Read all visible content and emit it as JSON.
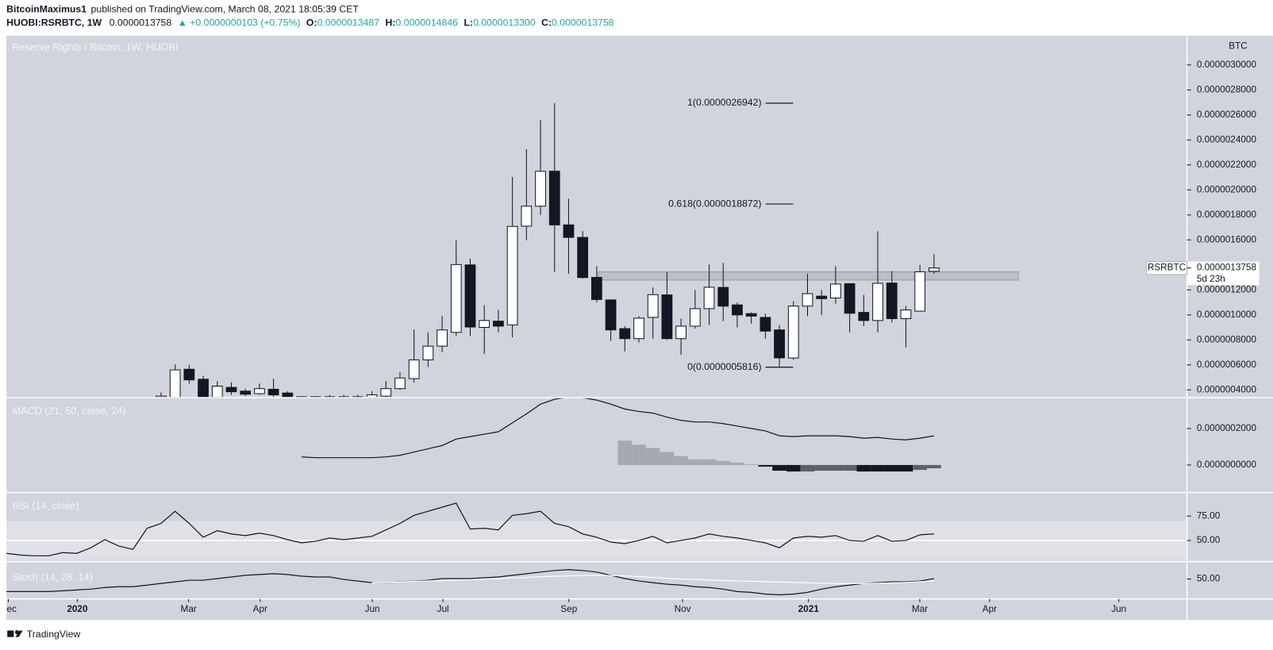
{
  "header": {
    "author": "BitcoinMaximus1",
    "published": "published on TradingView.com, March 08, 2021 18:05:39 CET",
    "symbol": "HUOBI:RSRBTC, 1W",
    "price": "0.0000013758",
    "change": "▲ +0.0000000103 (+0.75%)",
    "ohlc": [
      {
        "label": "O:",
        "value": "0.0000013487"
      },
      {
        "label": "H:",
        "value": "0.0000014846"
      },
      {
        "label": "L:",
        "value": "0.0000013300"
      },
      {
        "label": "C:",
        "value": "0.0000013758"
      }
    ]
  },
  "footer": {
    "brand": "TradingView"
  },
  "chart_data": [
    {
      "type": "candlestick",
      "title": "Reserve Rights / Bitcoin, 1W, HUOBI",
      "unit": "BTC",
      "xlim": [
        0,
        84
      ],
      "ylim": [
        3.38e-07,
        3.234e-06
      ],
      "yticks": [
        {
          "value": 3e-06,
          "label": "0.0000030000"
        },
        {
          "value": 2.8e-06,
          "label": "0.0000028000"
        },
        {
          "value": 2.6e-06,
          "label": "0.0000026000"
        },
        {
          "value": 2.4e-06,
          "label": "0.0000024000"
        },
        {
          "value": 2.2e-06,
          "label": "0.0000022000"
        },
        {
          "value": 2e-06,
          "label": "0.0000020000"
        },
        {
          "value": 1.8e-06,
          "label": "0.0000018000"
        },
        {
          "value": 1.6e-06,
          "label": "0.0000016000"
        },
        {
          "value": 1.2e-06,
          "label": "0.0000012000"
        },
        {
          "value": 1e-06,
          "label": "0.0000010000"
        },
        {
          "value": 8e-07,
          "label": "0.0000008000"
        },
        {
          "value": 6e-07,
          "label": "0.0000006000"
        },
        {
          "value": 4e-07,
          "label": "0.0000004000"
        }
      ],
      "up_color": "#ffffff",
      "down_color": "#131722",
      "open": [
        null,
        null,
        null,
        null,
        null,
        null,
        null,
        null,
        null,
        null,
        null,
        3.4e-07,
        3.4e-07,
        5.65e-07,
        4.85e-07,
        3.4e-07,
        4.2e-07,
        3.9e-07,
        3.7e-07,
        4.05e-07,
        3.75e-07,
        3.45e-07,
        3.4e-07,
        3.4e-07,
        3.45e-07,
        3.4e-07,
        3.4e-07,
        3.5e-07,
        4.1e-07,
        4.9e-07,
        6.4e-07,
        7.5e-07,
        8.6e-07,
        1.4e-06,
        9e-07,
        9.5e-07,
        9.2e-07,
        1.71e-06,
        1.87e-06,
        2.15e-06,
        1.72e-06,
        1.62e-06,
        1.3e-06,
        1.12e-06,
        8.9e-07,
        8.1e-07,
        9.8e-07,
        1.16e-06,
        8.1e-07,
        9.1e-07,
        1.05e-06,
        1.22e-06,
        1.08e-06,
        1.01e-06,
        9.8e-07,
        8.8e-07,
        6.55e-07,
        1.07e-06,
        1.15e-06,
        1.135e-06,
        1.25e-06,
        1.02e-06,
        9.55e-07,
        1.255e-06,
        9.7e-07,
        1.03e-06,
        1.3487e-06
      ],
      "high": [
        null,
        null,
        null,
        null,
        null,
        null,
        null,
        null,
        null,
        null,
        null,
        3.8e-07,
        6.04e-07,
        6e-07,
        5.13e-07,
        4.7e-07,
        4.6e-07,
        4.1e-07,
        4.5e-07,
        4.9e-07,
        3.9e-07,
        3.5e-07,
        3.5e-07,
        3.6e-07,
        3.6e-07,
        3.6e-07,
        3.9e-07,
        4.7e-07,
        5.4e-07,
        8.83e-07,
        8.6e-07,
        9.94e-07,
        1.597e-06,
        1.45e-06,
        1.078e-06,
        1.04e-06,
        2.104e-06,
        2.325e-06,
        2.56e-06,
        2.6942e-06,
        1.929e-06,
        1.67e-06,
        1.39e-06,
        1.12e-06,
        9.1e-07,
        9.9e-07,
        1.22e-06,
        1.344e-06,
        9.7e-07,
        1.201e-06,
        1.403e-06,
        1.416e-06,
        1.1e-06,
        1.02e-06,
        1.01e-06,
        9.2e-07,
        1.11e-06,
        1.33e-06,
        1.2e-06,
        1.39e-06,
        1.25e-06,
        1.16e-06,
        1.669e-06,
        1.35e-06,
        1.07e-06,
        1.4e-06,
        1.4846e-06
      ],
      "low": [
        null,
        null,
        null,
        null,
        null,
        null,
        null,
        null,
        null,
        null,
        null,
        3.2e-07,
        3.2e-07,
        4.5e-07,
        3.2e-07,
        3.2e-07,
        3.6e-07,
        3.5e-07,
        3.6e-07,
        3.4e-07,
        3.3e-07,
        3.3e-07,
        3.3e-07,
        3.3e-07,
        3.3e-07,
        3.3e-07,
        3.3e-07,
        3.4e-07,
        4e-07,
        4.6e-07,
        5.84e-07,
        7e-07,
        8.3e-07,
        8.3e-07,
        6.88e-07,
        8.6e-07,
        8.2e-07,
        1.597e-06,
        1.8e-06,
        1.344e-06,
        1.33e-06,
        1.29e-06,
        1.1e-06,
        7.92e-07,
        7.08e-07,
        7.8e-07,
        8.1e-07,
        8e-07,
        6.8e-07,
        8.9e-07,
        9.2e-07,
        9.5e-07,
        9e-07,
        9.3e-07,
        8.1e-07,
        5.816e-07,
        6.4e-07,
        9.9e-07,
        1e-06,
        1.09e-06,
        8.6e-07,
        9.1e-07,
        8.6e-07,
        9.4e-07,
        7.4e-07,
        1.03e-06,
        1.33e-06
      ],
      "close": [
        null,
        null,
        null,
        null,
        null,
        null,
        null,
        null,
        null,
        null,
        null,
        3.5e-07,
        5.6e-07,
        4.8e-07,
        3.4e-07,
        4.3e-07,
        3.85e-07,
        3.65e-07,
        4.1e-07,
        3.6e-07,
        3.45e-07,
        3.4e-07,
        3.45e-07,
        3.45e-07,
        3.4e-07,
        3.45e-07,
        3.6e-07,
        4.1e-07,
        4.95e-07,
        6.4e-07,
        7.5e-07,
        8.8e-07,
        1.403e-06,
        9.03e-07,
        9.55e-07,
        9.1e-07,
        1.708e-06,
        1.87e-06,
        2.149e-06,
        1.72e-06,
        1.62e-06,
        1.299e-06,
        1.123e-06,
        8.8e-07,
        8.1e-07,
        9.74e-07,
        1.162e-06,
        8.1e-07,
        9.1e-07,
        1.05e-06,
        1.221e-06,
        1.07e-06,
        1e-06,
        9.9e-07,
        8.7e-07,
        6.56e-07,
        1.071e-06,
        1.17e-06,
        1.13e-06,
        1.247e-06,
        1.013e-06,
        9.55e-07,
        1.253e-06,
        9.7e-07,
        1.04e-06,
        1.345e-06,
        1.3758e-06
      ],
      "fib_levels": [
        {
          "label": "1(0.0000026942)",
          "value": 2.6942e-06
        },
        {
          "label": "0.618(0.0000018872)",
          "value": 1.8872e-06
        },
        {
          "label": "0(0.0000005816)",
          "value": 5.816e-07
        }
      ],
      "zone": {
        "from": 1.279e-06,
        "to": 1.344e-06,
        "start": 42.1,
        "end": 72.0
      },
      "last_price": {
        "symbol": "RSRBTC",
        "label": "0.0000013758",
        "value": 1.3758e-06,
        "countdown": "5d 23h"
      }
    },
    {
      "type": "line",
      "title": "MACD (21, 50, close, 24)",
      "xlim": [
        0,
        84
      ],
      "ylim": [
        -1.51e-07,
        3.69e-07
      ],
      "yticks": [
        {
          "value": 2e-07,
          "label": "0.0000002000"
        },
        {
          "value": 0,
          "label": "0.0000000000"
        }
      ],
      "series": [
        {
          "color": "#131722",
          "values": [
            null,
            null,
            null,
            null,
            null,
            null,
            null,
            null,
            null,
            null,
            null,
            null,
            null,
            null,
            null,
            null,
            null,
            null,
            null,
            null,
            null,
            4.44e-08,
            4e-08,
            4e-08,
            4e-08,
            4e-08,
            4e-08,
            4.44e-08,
            5.33e-08,
            7.11e-08,
            8.89e-08,
            1.067e-07,
            1.422e-07,
            1.556e-07,
            1.689e-07,
            1.822e-07,
            2.311e-07,
            2.8e-07,
            3.333e-07,
            3.6e-07,
            3.733e-07,
            3.689e-07,
            3.556e-07,
            3.333e-07,
            3.067e-07,
            2.933e-07,
            2.844e-07,
            2.622e-07,
            2.444e-07,
            2.356e-07,
            2.356e-07,
            2.267e-07,
            2.133e-07,
            2e-07,
            1.867e-07,
            1.6e-07,
            1.556e-07,
            1.6e-07,
            1.6e-07,
            1.6e-07,
            1.556e-07,
            1.467e-07,
            1.511e-07,
            1.422e-07,
            1.378e-07,
            1.467e-07,
            1.6e-07
          ]
        }
      ],
      "histogram": {
        "values": [
          null,
          null,
          null,
          null,
          null,
          null,
          null,
          null,
          null,
          null,
          null,
          null,
          null,
          null,
          null,
          null,
          null,
          null,
          null,
          null,
          null,
          null,
          null,
          null,
          null,
          null,
          null,
          null,
          null,
          null,
          null,
          null,
          null,
          null,
          null,
          null,
          null,
          null,
          null,
          null,
          null,
          null,
          null,
          null,
          1.333e-07,
          1.111e-07,
          9.33e-08,
          7.11e-08,
          4.89e-08,
          3.11e-08,
          3.11e-08,
          2.22e-08,
          1.33e-08,
          4.4e-09,
          -8.9e-09,
          -3.11e-08,
          -3.56e-08,
          -3.56e-08,
          -3.11e-08,
          -3.11e-08,
          -3.11e-08,
          -3.56e-08,
          -3.56e-08,
          -3.56e-08,
          -3.56e-08,
          -2.67e-08,
          -1.78e-08
        ],
        "colors": [
          null,
          null,
          null,
          null,
          null,
          null,
          null,
          null,
          null,
          null,
          null,
          null,
          null,
          null,
          null,
          null,
          null,
          null,
          null,
          null,
          null,
          null,
          null,
          null,
          null,
          null,
          null,
          null,
          null,
          null,
          null,
          null,
          null,
          null,
          null,
          null,
          null,
          null,
          null,
          null,
          null,
          null,
          null,
          null,
          "#a6a9b2",
          "#a6a9b2",
          "#a6a9b2",
          "#a6a9b2",
          "#a6a9b2",
          "#a6a9b2",
          "#a6a9b2",
          "#a6a9b2",
          "#a6a9b2",
          "#a6a9b2",
          "#131722",
          "#131722",
          "#131722",
          "#5d606b",
          "#5d606b",
          "#5d606b",
          "#5d606b",
          "#131722",
          "#131722",
          "#131722",
          "#131722",
          "#5d606b",
          "#5d606b"
        ]
      }
    },
    {
      "type": "line",
      "title": "RSI (14, close)",
      "xlim": [
        0,
        84
      ],
      "ylim": [
        28.3,
        99.2
      ],
      "yticks": [
        {
          "value": 75,
          "label": "75.00"
        },
        {
          "value": 50,
          "label": "50.00"
        }
      ],
      "band": [
        30,
        70
      ],
      "band_color": "#dfe1e7",
      "midline": 50,
      "series": [
        {
          "color": "#131722",
          "values": [
            36.7,
            35,
            34.2,
            34.2,
            37.5,
            36.7,
            42.5,
            50.8,
            44.2,
            40.8,
            62.5,
            67.5,
            80,
            67.5,
            53.3,
            60,
            56.7,
            55,
            57.5,
            55,
            50.8,
            47.5,
            49.2,
            52.5,
            50.8,
            52.5,
            54.2,
            60.8,
            67.5,
            75.8,
            80,
            84.2,
            88.3,
            61.7,
            62.5,
            60.8,
            75.8,
            77.5,
            80,
            67.5,
            64.2,
            56.7,
            53.3,
            48.3,
            46.7,
            50,
            54.2,
            47.5,
            50,
            52.5,
            56.7,
            54.2,
            52.5,
            50,
            47.5,
            42.5,
            52.5,
            54.2,
            53.3,
            55,
            50,
            49.2,
            55,
            49.2,
            50,
            55.8,
            56.7
          ]
        }
      ]
    },
    {
      "type": "line",
      "title": "Stoch (14, 28, 14)",
      "xlim": [
        0,
        84
      ],
      "ylim": [
        -2.1,
        95.7
      ],
      "yticks": [
        {
          "value": 50,
          "label": "50.00"
        }
      ],
      "xticks": [
        {
          "value": 0.13,
          "label": "Dec"
        },
        {
          "value": 5.04,
          "label": "2020"
        },
        {
          "value": 12.96,
          "label": "Mar"
        },
        {
          "value": 18.05,
          "label": "Apr"
        },
        {
          "value": 26.03,
          "label": "Jun"
        },
        {
          "value": 31.06,
          "label": "Jul"
        },
        {
          "value": 40.02,
          "label": "Sep"
        },
        {
          "value": 48.11,
          "label": "Nov"
        },
        {
          "value": 57.07,
          "label": "2021"
        },
        {
          "value": 64.99,
          "label": "Mar"
        },
        {
          "value": 69.96,
          "label": "Apr"
        },
        {
          "value": 79.15,
          "label": "Jun"
        }
      ],
      "series": [
        {
          "color": "#131722",
          "values": [
            17,
            17,
            17,
            17,
            19.1,
            21.3,
            23.4,
            27.7,
            29.8,
            29.8,
            34,
            38.3,
            42.6,
            46.8,
            46.8,
            51.1,
            55.3,
            59.6,
            61.7,
            63.8,
            61.7,
            57.4,
            55.3,
            55.3,
            48.9,
            44.7,
            40.4,
            40.4,
            42.6,
            44.7,
            46.8,
            51.1,
            51.1,
            51.1,
            53.2,
            55.3,
            59.6,
            63.8,
            68.1,
            72.3,
            74.5,
            72.3,
            68.1,
            59.6,
            51.1,
            44.7,
            40.4,
            36.2,
            34,
            29.8,
            27.7,
            23.4,
            17,
            14.9,
            10.6,
            8.5,
            10.6,
            14.9,
            23.4,
            29.8,
            34,
            38.3,
            40.4,
            42.6,
            42.6,
            44.7,
            51.1
          ]
        },
        {
          "color": "#ffffff",
          "values": [
            null,
            null,
            null,
            null,
            null,
            null,
            null,
            null,
            null,
            null,
            null,
            null,
            null,
            null,
            null,
            null,
            null,
            null,
            null,
            null,
            null,
            null,
            null,
            null,
            null,
            null,
            40,
            41,
            42,
            44,
            45,
            46,
            47,
            48,
            50,
            51,
            53,
            54,
            56,
            57,
            58,
            59,
            60,
            59,
            58,
            56,
            54,
            52,
            50,
            49,
            47,
            46,
            45,
            44,
            43,
            42,
            41,
            40,
            39,
            38,
            38,
            38,
            39,
            40,
            41,
            43,
            45
          ]
        }
      ]
    }
  ]
}
